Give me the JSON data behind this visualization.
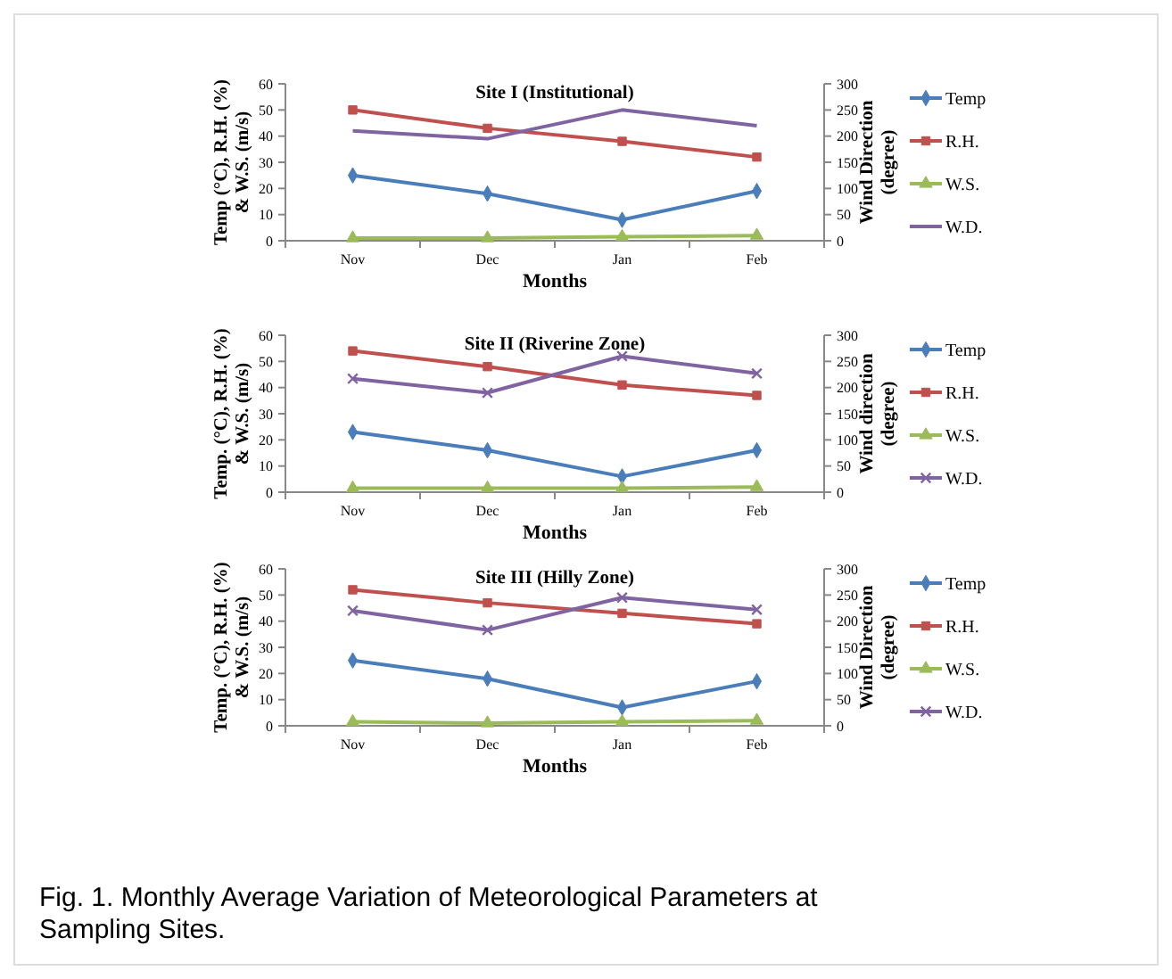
{
  "chart_data": [
    {
      "type": "line",
      "title": "Site I (Institutional)",
      "xlabel": "Months",
      "ylabel": "Temp (°C), R.H. (%) & W.S. (m/s)",
      "y2label": "Wind Direction (degree)",
      "categories": [
        "Nov",
        "Dec",
        "Jan",
        "Feb"
      ],
      "ylim": [
        0,
        60
      ],
      "yticks": [
        0,
        10,
        20,
        30,
        40,
        50,
        60
      ],
      "y2lim": [
        0,
        300
      ],
      "y2ticks": [
        0,
        50,
        100,
        150,
        200,
        250,
        300
      ],
      "legend": "right",
      "series": [
        {
          "name": "Temp",
          "color": "#4a7ebb",
          "marker": "diamond",
          "values": [
            25,
            18,
            8,
            19
          ]
        },
        {
          "name": "R.H.",
          "color": "#c0504d",
          "marker": "square",
          "values": [
            50,
            43,
            38,
            32
          ]
        },
        {
          "name": "W.S.",
          "color": "#9bbb59",
          "marker": "triangle",
          "values": [
            1,
            1,
            1.5,
            2
          ]
        },
        {
          "name": "W.D.",
          "color": "#8064a2",
          "marker": "none",
          "axis": "y2",
          "values": [
            210,
            195,
            250,
            220
          ]
        }
      ]
    },
    {
      "type": "line",
      "title": "Site II (Riverine Zone)",
      "xlabel": "Months",
      "ylabel": "Temp. (°C), R.H. (%) & W.S. (m/s)",
      "y2label": "Wind direction (degree)",
      "categories": [
        "Nov",
        "Dec",
        "Jan",
        "Feb"
      ],
      "ylim": [
        0,
        60
      ],
      "yticks": [
        0,
        10,
        20,
        30,
        40,
        50,
        60
      ],
      "y2lim": [
        0,
        300
      ],
      "y2ticks": [
        0,
        50,
        100,
        150,
        200,
        250,
        300
      ],
      "legend": "right",
      "series": [
        {
          "name": "Temp",
          "color": "#4a7ebb",
          "marker": "diamond",
          "values": [
            23,
            16,
            6,
            16
          ]
        },
        {
          "name": "R.H.",
          "color": "#c0504d",
          "marker": "square",
          "values": [
            54,
            48,
            41,
            37
          ]
        },
        {
          "name": "W.S.",
          "color": "#9bbb59",
          "marker": "triangle",
          "values": [
            1.5,
            1.5,
            1.5,
            2
          ]
        },
        {
          "name": "W.D.",
          "color": "#8064a2",
          "marker": "cross",
          "axis": "y2",
          "values": [
            217,
            190,
            260,
            227
          ]
        }
      ]
    },
    {
      "type": "line",
      "title": "Site III (Hilly Zone)",
      "xlabel": "Months",
      "ylabel": "Temp. (°C), R.H. (%) & W.S. (m/s)",
      "y2label": "Wind Direction (degree)",
      "categories": [
        "Nov",
        "Dec",
        "Jan",
        "Feb"
      ],
      "ylim": [
        0,
        60
      ],
      "yticks": [
        0,
        10,
        20,
        30,
        40,
        50,
        60
      ],
      "y2lim": [
        0,
        300
      ],
      "y2ticks": [
        0,
        50,
        100,
        150,
        200,
        250,
        300
      ],
      "legend": "right",
      "annotations": [
        "Fig. 1. Monthly Average Variation of Meteorological Parameters at Sampling Sites."
      ],
      "series": [
        {
          "name": "Temp",
          "color": "#4a7ebb",
          "marker": "diamond",
          "values": [
            25,
            18,
            7,
            17
          ]
        },
        {
          "name": "R.H.",
          "color": "#c0504d",
          "marker": "square",
          "values": [
            52,
            47,
            43,
            39
          ]
        },
        {
          "name": "W.S.",
          "color": "#9bbb59",
          "marker": "triangle",
          "values": [
            1.5,
            1,
            1.5,
            2
          ]
        },
        {
          "name": "W.D.",
          "color": "#8064a2",
          "marker": "cross",
          "axis": "y2",
          "values": [
            220,
            183,
            245,
            222
          ]
        }
      ]
    }
  ]
}
